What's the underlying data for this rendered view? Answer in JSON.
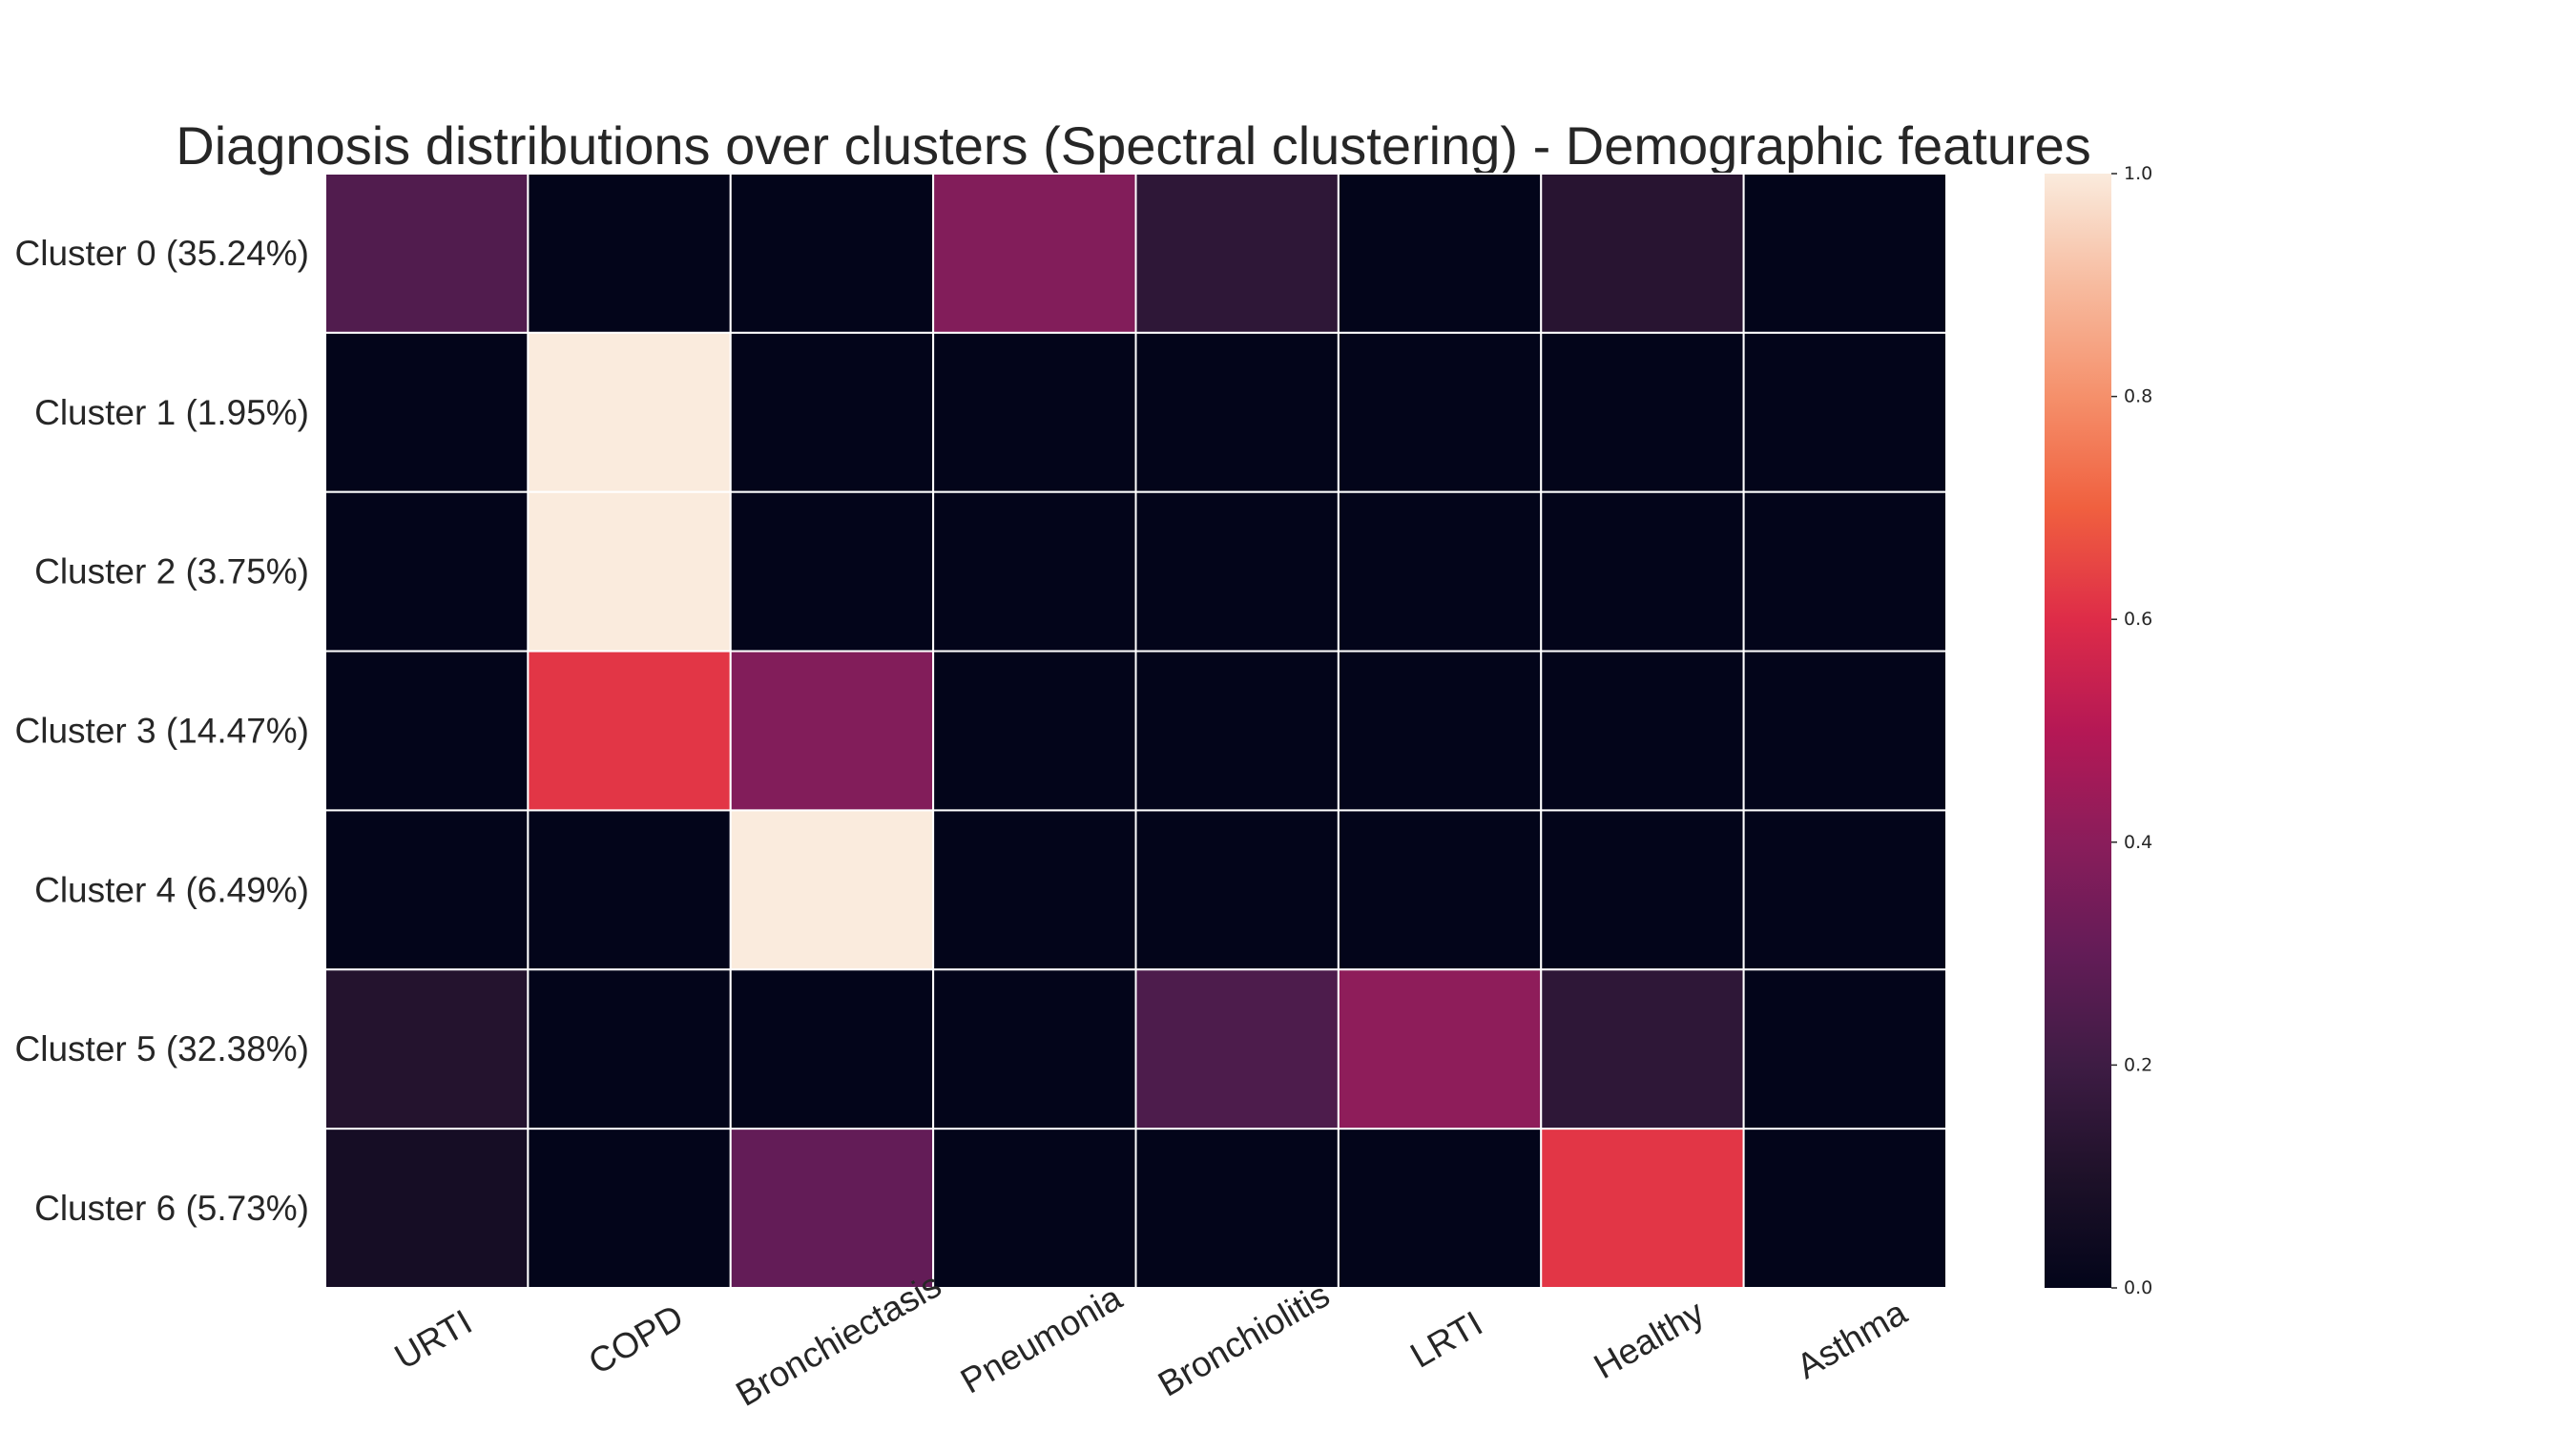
{
  "chart_data": {
    "type": "heatmap",
    "title": "Diagnosis distributions over clusters (Spectral clustering) - Demographic features",
    "rows": [
      "Cluster 0 (35.24%)",
      "Cluster 1 (1.95%)",
      "Cluster 2 (3.75%)",
      "Cluster 3 (14.47%)",
      "Cluster 4 (6.49%)",
      "Cluster 5 (32.38%)",
      "Cluster 6 (5.73%)"
    ],
    "columns": [
      "URTI",
      "COPD",
      "Bronchiectasis",
      "Pneumonia",
      "Bronchiolitis",
      "LRTI",
      "Healthy",
      "Asthma"
    ],
    "values": [
      [
        0.25,
        0.0,
        0.0,
        0.38,
        0.15,
        0.0,
        0.13,
        0.0
      ],
      [
        0.0,
        1.0,
        0.0,
        0.0,
        0.0,
        0.0,
        0.0,
        0.0
      ],
      [
        0.0,
        1.0,
        0.0,
        0.0,
        0.0,
        0.0,
        0.0,
        0.0
      ],
      [
        0.0,
        0.62,
        0.38,
        0.0,
        0.0,
        0.0,
        0.0,
        0.0
      ],
      [
        0.0,
        0.0,
        1.0,
        0.0,
        0.0,
        0.0,
        0.0,
        0.0
      ],
      [
        0.12,
        0.0,
        0.0,
        0.0,
        0.24,
        0.41,
        0.15,
        0.0
      ],
      [
        0.07,
        0.0,
        0.3,
        0.0,
        0.0,
        0.0,
        0.62,
        0.0
      ]
    ],
    "colorbar": {
      "min": 0.0,
      "max": 1.0,
      "ticks": [
        "0.0",
        "0.2",
        "0.4",
        "0.6",
        "0.8",
        "1.0"
      ],
      "colormap": "rocket"
    },
    "grid": "white cell separators"
  }
}
